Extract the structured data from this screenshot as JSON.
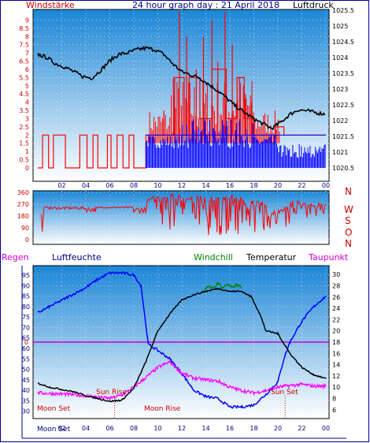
{
  "header": {
    "left": "Windstärke",
    "title": "24 hour graph day : 21 April 2018",
    "right": "Luftdruck"
  },
  "mid_header": {
    "regen": "Regen",
    "luftfeuchte": "Luftfeuchte",
    "windchill": "Windchill",
    "temperatur": "Temperatur",
    "taupunkt": "Taupunkt"
  },
  "colors": {
    "panel_top": "#1a8ad8",
    "panel_bottom": "#ffffff",
    "wind_gust": "#ff0000",
    "wind_avg": "#0000ff",
    "pressure": "#000000",
    "direction": "#ff0000",
    "humidity": "#0000ff",
    "temperature": "#000000",
    "windchill": "#008000",
    "dewpoint": "#ff00ff",
    "rain": "#cc0000",
    "rain_line": "#cc00cc",
    "astro": "#cc0000"
  },
  "chart_data": [
    {
      "type": "line",
      "name": "wind-pressure",
      "x_ticks": [
        "02",
        "04",
        "06",
        "08",
        "10",
        "12",
        "14",
        "16",
        "18",
        "20",
        "22",
        "00"
      ],
      "y_left_ticks": [
        "0",
        "0.5",
        "1",
        "1.5",
        "2",
        "2.5",
        "3",
        "3.5",
        "4",
        "4.5",
        "5",
        "5.5",
        "6",
        "6.5",
        "7",
        "7.5",
        "8",
        "8.5",
        "9"
      ],
      "y_left_range": [
        0,
        9.5
      ],
      "y_right_ticks": [
        "1020.5",
        "1021",
        "1021.5",
        "1022",
        "1022.5",
        "1023",
        "1023.5",
        "1024",
        "1024.5",
        "1025",
        "1025.5"
      ],
      "y_right_range": [
        1020.5,
        1025.5
      ],
      "pressure_hpa": [
        [
          0,
          1024.1
        ],
        [
          1,
          1024.0
        ],
        [
          2,
          1023.8
        ],
        [
          3,
          1023.7
        ],
        [
          4,
          1023.55
        ],
        [
          5,
          1023.4
        ],
        [
          6,
          1023.35
        ],
        [
          7,
          1023.6
        ],
        [
          8,
          1023.9
        ],
        [
          9,
          1024.1
        ],
        [
          10,
          1024.15
        ],
        [
          11,
          1024.25
        ],
        [
          12,
          1024.3
        ],
        [
          13,
          1024.25
        ],
        [
          14,
          1024.1
        ],
        [
          15,
          1023.8
        ],
        [
          16,
          1023.55
        ],
        [
          17,
          1023.45
        ],
        [
          18,
          1023.35
        ],
        [
          19,
          1023.15
        ],
        [
          20,
          1022.95
        ],
        [
          21,
          1022.7
        ],
        [
          22,
          1022.45
        ],
        [
          23,
          1022.25
        ],
        [
          24,
          1022.05
        ],
        [
          25,
          1021.9
        ],
        [
          26,
          1021.75
        ],
        [
          27,
          1021.95
        ],
        [
          28,
          1022.2
        ],
        [
          29,
          1022.35
        ],
        [
          30,
          1022.3
        ],
        [
          31,
          1022.25
        ],
        [
          32,
          1022.2
        ]
      ],
      "x_axis_hours_per_point": 0.75,
      "wind_gust_steps": [
        [
          0,
          0
        ],
        [
          0.4,
          2
        ],
        [
          0.9,
          0
        ],
        [
          1.3,
          2
        ],
        [
          2.3,
          0
        ],
        [
          3.5,
          2
        ],
        [
          4.1,
          0
        ],
        [
          4.6,
          2
        ],
        [
          5.0,
          0
        ],
        [
          5.8,
          2
        ],
        [
          6.1,
          0
        ],
        [
          6.6,
          2
        ],
        [
          7.1,
          0
        ],
        [
          7.6,
          2
        ],
        [
          8.0,
          0
        ],
        [
          9.0,
          2
        ],
        [
          11.4,
          5.5
        ],
        [
          12.2,
          2
        ],
        [
          12.6,
          5.5
        ],
        [
          13.5,
          3
        ],
        [
          14.5,
          6
        ],
        [
          15.7,
          3
        ],
        [
          16.6,
          5.5
        ],
        [
          17.2,
          3
        ],
        [
          18.0,
          2
        ],
        [
          19.8,
          2.5
        ],
        [
          20.5,
          2
        ],
        [
          24,
          2
        ]
      ],
      "wind_gust_spikes": [
        [
          10.5,
          3.5
        ],
        [
          11.3,
          5.5
        ],
        [
          11.8,
          9.5
        ],
        [
          12.4,
          8.0
        ],
        [
          13.2,
          6.0
        ],
        [
          13.8,
          8.0
        ],
        [
          14.5,
          9.0
        ],
        [
          15.0,
          6.5
        ],
        [
          15.6,
          9.5
        ],
        [
          16.2,
          7.5
        ],
        [
          16.8,
          5.5
        ],
        [
          17.3,
          4.5
        ],
        [
          17.8,
          4.0
        ]
      ],
      "wind_avg_bands": [
        [
          9.0,
          0,
          2
        ],
        [
          9.6,
          0,
          1.5
        ],
        [
          10.0,
          0,
          2
        ],
        [
          11.0,
          0,
          2
        ],
        [
          12.0,
          0,
          2
        ],
        [
          13.0,
          0,
          3
        ],
        [
          14.0,
          0,
          3
        ],
        [
          15.0,
          0,
          3
        ],
        [
          16.0,
          0,
          3
        ],
        [
          17.0,
          0,
          3
        ],
        [
          18.0,
          0,
          2
        ],
        [
          19.0,
          0,
          2
        ],
        [
          20.0,
          0,
          1
        ],
        [
          21.0,
          0,
          1
        ],
        [
          22.0,
          0,
          1
        ],
        [
          23.0,
          0,
          1
        ],
        [
          24.0,
          0,
          1
        ]
      ]
    },
    {
      "type": "line",
      "name": "wind-direction",
      "x_ticks": [
        "02",
        "04",
        "06",
        "08",
        "10",
        "12",
        "14",
        "16",
        "18",
        "20",
        "22",
        "00"
      ],
      "y_left_ticks": [
        "0",
        "90",
        "180",
        "270",
        "360"
      ],
      "y_left_range": [
        0,
        360
      ],
      "y_right_ticks": [
        "N",
        "W",
        "S",
        "O",
        "N"
      ],
      "direction_deg_segments": [
        [
          0.0,
          0,
          200
        ],
        [
          0.5,
          240,
          250
        ],
        [
          1.0,
          230,
          250
        ],
        [
          2.0,
          230,
          250
        ],
        [
          3.0,
          230,
          250
        ],
        [
          4.0,
          210,
          250
        ],
        [
          5.0,
          240,
          250
        ],
        [
          6.0,
          240,
          250
        ],
        [
          7.0,
          240,
          250
        ],
        [
          8.0,
          200,
          250
        ],
        [
          9.0,
          60,
          330
        ],
        [
          10.0,
          30,
          330
        ],
        [
          11.0,
          60,
          350
        ],
        [
          12.0,
          30,
          330
        ],
        [
          13.0,
          60,
          330
        ],
        [
          14.0,
          30,
          330
        ],
        [
          15.0,
          30,
          340
        ],
        [
          16.0,
          30,
          340
        ],
        [
          17.0,
          60,
          310
        ],
        [
          18.0,
          30,
          300
        ],
        [
          19.0,
          20,
          220
        ],
        [
          20.0,
          90,
          250
        ],
        [
          21.0,
          180,
          300
        ],
        [
          22.0,
          150,
          290
        ],
        [
          23.0,
          180,
          280
        ],
        [
          24.0,
          220,
          250
        ]
      ]
    },
    {
      "type": "line",
      "name": "temp-humidity",
      "x_ticks": [
        "02",
        "04",
        "06",
        "08",
        "10",
        "12",
        "14",
        "16",
        "18",
        "20",
        "22",
        "00"
      ],
      "y_left_ticks": [
        "30",
        "35",
        "40",
        "45",
        "50",
        "55",
        "60",
        "65",
        "70",
        "75",
        "80",
        "85",
        "90",
        "95"
      ],
      "y_left_range": [
        28,
        98
      ],
      "y_right_ticks": [
        "6",
        "8",
        "10",
        "12",
        "14",
        "16",
        "18",
        "20",
        "22",
        "24",
        "26",
        "28",
        "30"
      ],
      "y_right_range": [
        5,
        31
      ],
      "rain_tick": "0",
      "humidity_pct": [
        [
          0,
          77
        ],
        [
          1,
          80
        ],
        [
          2,
          83
        ],
        [
          3,
          86
        ],
        [
          4,
          89
        ],
        [
          5,
          93
        ],
        [
          6,
          96
        ],
        [
          7,
          96
        ],
        [
          8,
          95
        ],
        [
          8.6,
          90
        ],
        [
          9.2,
          62
        ],
        [
          10,
          59
        ],
        [
          11,
          55
        ],
        [
          12,
          48
        ],
        [
          13,
          40
        ],
        [
          14,
          37
        ],
        [
          15,
          36
        ],
        [
          16,
          32
        ],
        [
          17,
          32
        ],
        [
          18,
          33
        ],
        [
          19,
          38
        ],
        [
          20,
          44
        ],
        [
          20.5,
          55
        ],
        [
          21,
          63
        ],
        [
          22,
          73
        ],
        [
          23,
          80
        ],
        [
          24,
          85
        ]
      ],
      "temperature_c": [
        [
          0,
          10.7
        ],
        [
          1,
          10
        ],
        [
          2,
          9.6
        ],
        [
          3,
          9.2
        ],
        [
          4,
          8.5
        ],
        [
          5,
          8
        ],
        [
          6,
          7.5
        ],
        [
          6.5,
          7.6
        ],
        [
          7,
          7.7
        ],
        [
          8,
          9.8
        ],
        [
          9,
          14.5
        ],
        [
          10,
          20
        ],
        [
          11,
          23
        ],
        [
          12,
          25.5
        ],
        [
          13,
          26.4
        ],
        [
          14,
          27
        ],
        [
          15,
          27.5
        ],
        [
          16,
          27
        ],
        [
          17,
          27
        ],
        [
          17.8,
          26
        ],
        [
          18.5,
          23
        ],
        [
          19,
          20
        ],
        [
          20,
          19.5
        ],
        [
          21,
          16
        ],
        [
          22,
          13.5
        ],
        [
          23,
          12.2
        ],
        [
          24,
          11.5
        ]
      ],
      "windchill_c": [
        [
          13.8,
          27
        ],
        [
          14.2,
          28.1
        ],
        [
          14.6,
          27.4
        ],
        [
          15,
          28.5
        ],
        [
          15.4,
          27.6
        ],
        [
          15.8,
          28.3
        ],
        [
          16.2,
          27.6
        ],
        [
          16.6,
          28.2
        ],
        [
          17,
          27.6
        ]
      ],
      "dewpoint_c": [
        [
          0,
          9
        ],
        [
          2,
          8.8
        ],
        [
          4,
          8.5
        ],
        [
          6,
          8
        ],
        [
          7,
          8.6
        ],
        [
          8,
          10
        ],
        [
          9,
          11.7
        ],
        [
          10,
          13.5
        ],
        [
          11,
          14.5
        ],
        [
          12,
          12.5
        ],
        [
          13,
          11.6
        ],
        [
          14,
          11.3
        ],
        [
          15,
          11.1
        ],
        [
          16,
          10
        ],
        [
          17,
          9.4
        ],
        [
          18,
          9
        ],
        [
          19,
          9.4
        ],
        [
          20,
          10
        ],
        [
          21,
          10.3
        ],
        [
          22,
          10.5
        ],
        [
          23,
          10.2
        ],
        [
          24,
          10.2
        ]
      ],
      "rain_y": 63,
      "annotations": {
        "sun_rise": "Sun Rise",
        "sun_set": "Sun Set",
        "moon_set": "Moon Set",
        "moon_rise": "Moon Rise"
      }
    }
  ]
}
